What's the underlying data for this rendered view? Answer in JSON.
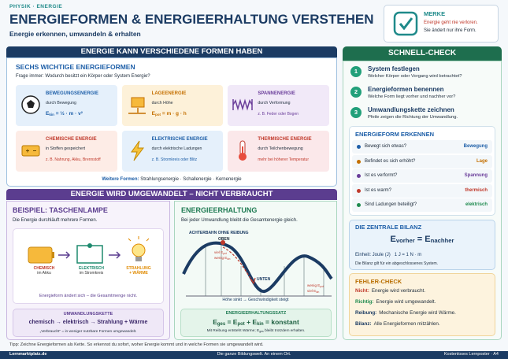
{
  "header": {
    "kicker": "PHYSIK · ENERGIE",
    "title": "ENERGIEFORMEN & ENERGIEERHALTUNG VERSTEHEN",
    "subtitle": "Energie erkennen, umwandeln & erhalten"
  },
  "merke": {
    "label": "MERKE",
    "lines": [
      "Energie geht nie verloren.",
      "Sie ändert nur ihre Form."
    ]
  },
  "forms": {
    "banner": "ENERGIE KANN VERSCHIEDENE FORMEN HABEN",
    "heading": "SECHS WICHTIGE ENERGIEFORMEN",
    "question": "Frage immer: Wodurch besitzt ein Körper oder System Energie?",
    "cards": [
      {
        "title": "BEWEGUNGSENERGIE",
        "text": "durch Bewegung",
        "note": [
          "E",
          "kin",
          " = ½ · m · v²"
        ]
      },
      {
        "title": "LAGEENERGIE",
        "text": "durch Höhe",
        "note": [
          "E",
          "pot",
          " = m · g · h"
        ]
      },
      {
        "title": "SPANNENERGIE",
        "text": "durch Verformung",
        "note": [
          "z. B. Feder oder Bogen"
        ]
      },
      {
        "title": "CHEMISCHE ENERGIE",
        "text": "in Stoffen gespeichert",
        "note": [
          "z. B. Nahrung, Akku, Brennstoff"
        ]
      },
      {
        "title": "ELEKTRISCHE ENERGIE",
        "text": "durch elektrische Ladungen",
        "note": [
          "z. B. Stromkreis oder Blitz"
        ]
      },
      {
        "title": "THERMISCHE ENERGIE",
        "text": "durch Teilchenbewegung",
        "note": [
          "mehr bei höherer Temperatur"
        ]
      }
    ],
    "more": {
      "label": "Weitere Formen:",
      "text": "Strahlungsenergie · Schallenergie · Kernenergie"
    }
  },
  "conversion": {
    "banner": "ENERGIE WIRD UMGEWANDELT – NICHT VERBRAUCHT",
    "example": {
      "heading": "BEISPIEL: TASCHENLAMPE",
      "intro": "Die Energie durchläuft mehrere Formen.",
      "steps": [
        {
          "name": "CHEMISCH",
          "sub": "im Akku"
        },
        {
          "name": "ELEKTRISCH",
          "sub": "im Stromkreis"
        },
        {
          "name": "STRAHLUNG",
          "sub": "+ WÄRME"
        }
      ],
      "caption": "Energieform ändert sich – die Gesamtmenge nicht.",
      "chain": {
        "label": "UMWANDLUNGSKETTE",
        "text": "chemisch → elektrisch → Strahlung + Wärme",
        "note": "„Verbraucht“ = in weniger nutzbare Formen umgewandelt."
      }
    },
    "conservation": {
      "heading": "ENERGIEERHALTUNG",
      "intro": "Bei jeder Umwandlung bleibt die Gesamtenergie gleich.",
      "coaster": {
        "label": "ACHTERBAHN OHNE REIBUNG",
        "top": "OBEN",
        "top_a": [
          "viel E",
          "pot"
        ],
        "top_b": [
          "wenig E",
          "kin"
        ],
        "bottom": "UNTEN",
        "bottom_a": [
          "wenig E",
          "pot"
        ],
        "bottom_b": [
          "viel E",
          "kin"
        ],
        "caption": "Höhe sinkt → Geschwindigkeit steigt"
      },
      "law": {
        "label": "ENERGIEERHALTUNGSSATZ",
        "formula": [
          "E",
          "ges",
          " = E",
          "pot",
          " + E",
          "kin",
          " = konstant"
        ],
        "note": [
          "Mit Reibung entsteht Wärme; E",
          "ges",
          " bleibt trotzdem erhalten."
        ]
      }
    }
  },
  "check": {
    "banner": "SCHNELL-CHECK",
    "steps": [
      {
        "number": "1",
        "title": "System festlegen",
        "text": "Welcher Körper oder Vorgang wird betrachtet?"
      },
      {
        "number": "2",
        "title": "Energieformen benennen",
        "text": "Welche Form liegt vorher und nachher vor?"
      },
      {
        "number": "3",
        "title": "Umwandlungskette zeichnen",
        "text": "Pfeile zeigen die Richtung der Umwandlung."
      }
    ],
    "recognize": {
      "heading": "ENERGIEFORM ERKENNEN",
      "rows": [
        {
          "q": "Bewegt sich etwas?",
          "a": "Bewegung"
        },
        {
          "q": "Befindet es sich erhöht?",
          "a": "Lage"
        },
        {
          "q": "Ist es verformt?",
          "a": "Spannung"
        },
        {
          "q": "Ist es warm?",
          "a": "thermisch"
        },
        {
          "q": "Sind Ladungen beteiligt?",
          "a": "elektrisch"
        }
      ]
    },
    "balance": {
      "heading": "DIE ZENTRALE BILANZ",
      "formula": [
        "E",
        "vorher",
        " = E",
        "nachher"
      ],
      "unit": "Einheit: Joule (J)   1 J = 1 N · m",
      "note": "Die Bilanz gilt für ein abgeschlossenes System."
    },
    "errors": {
      "heading": "FEHLER-CHECK",
      "items": [
        {
          "key": "Nicht:",
          "text": "Energie wird verbraucht."
        },
        {
          "key": "Richtig:",
          "text": "Energie wird umgewandelt."
        },
        {
          "key": "Reibung:",
          "text": "Mechanische Energie wird Wärme."
        },
        {
          "key": "Bilanz:",
          "text": "Alle Energieformen mitzählen."
        }
      ]
    }
  },
  "tip": "Tipp: Zeichne Energieformen als Kette. So erkennst du sofort, woher Energie kommt und in welche Formen sie umgewandelt wird.",
  "footer": {
    "left": "Lernmarktplatz.de",
    "center": "Die ganze Bildungswelt. An einem Ort.",
    "right": "Kostenloses Lernposter · A4"
  }
}
